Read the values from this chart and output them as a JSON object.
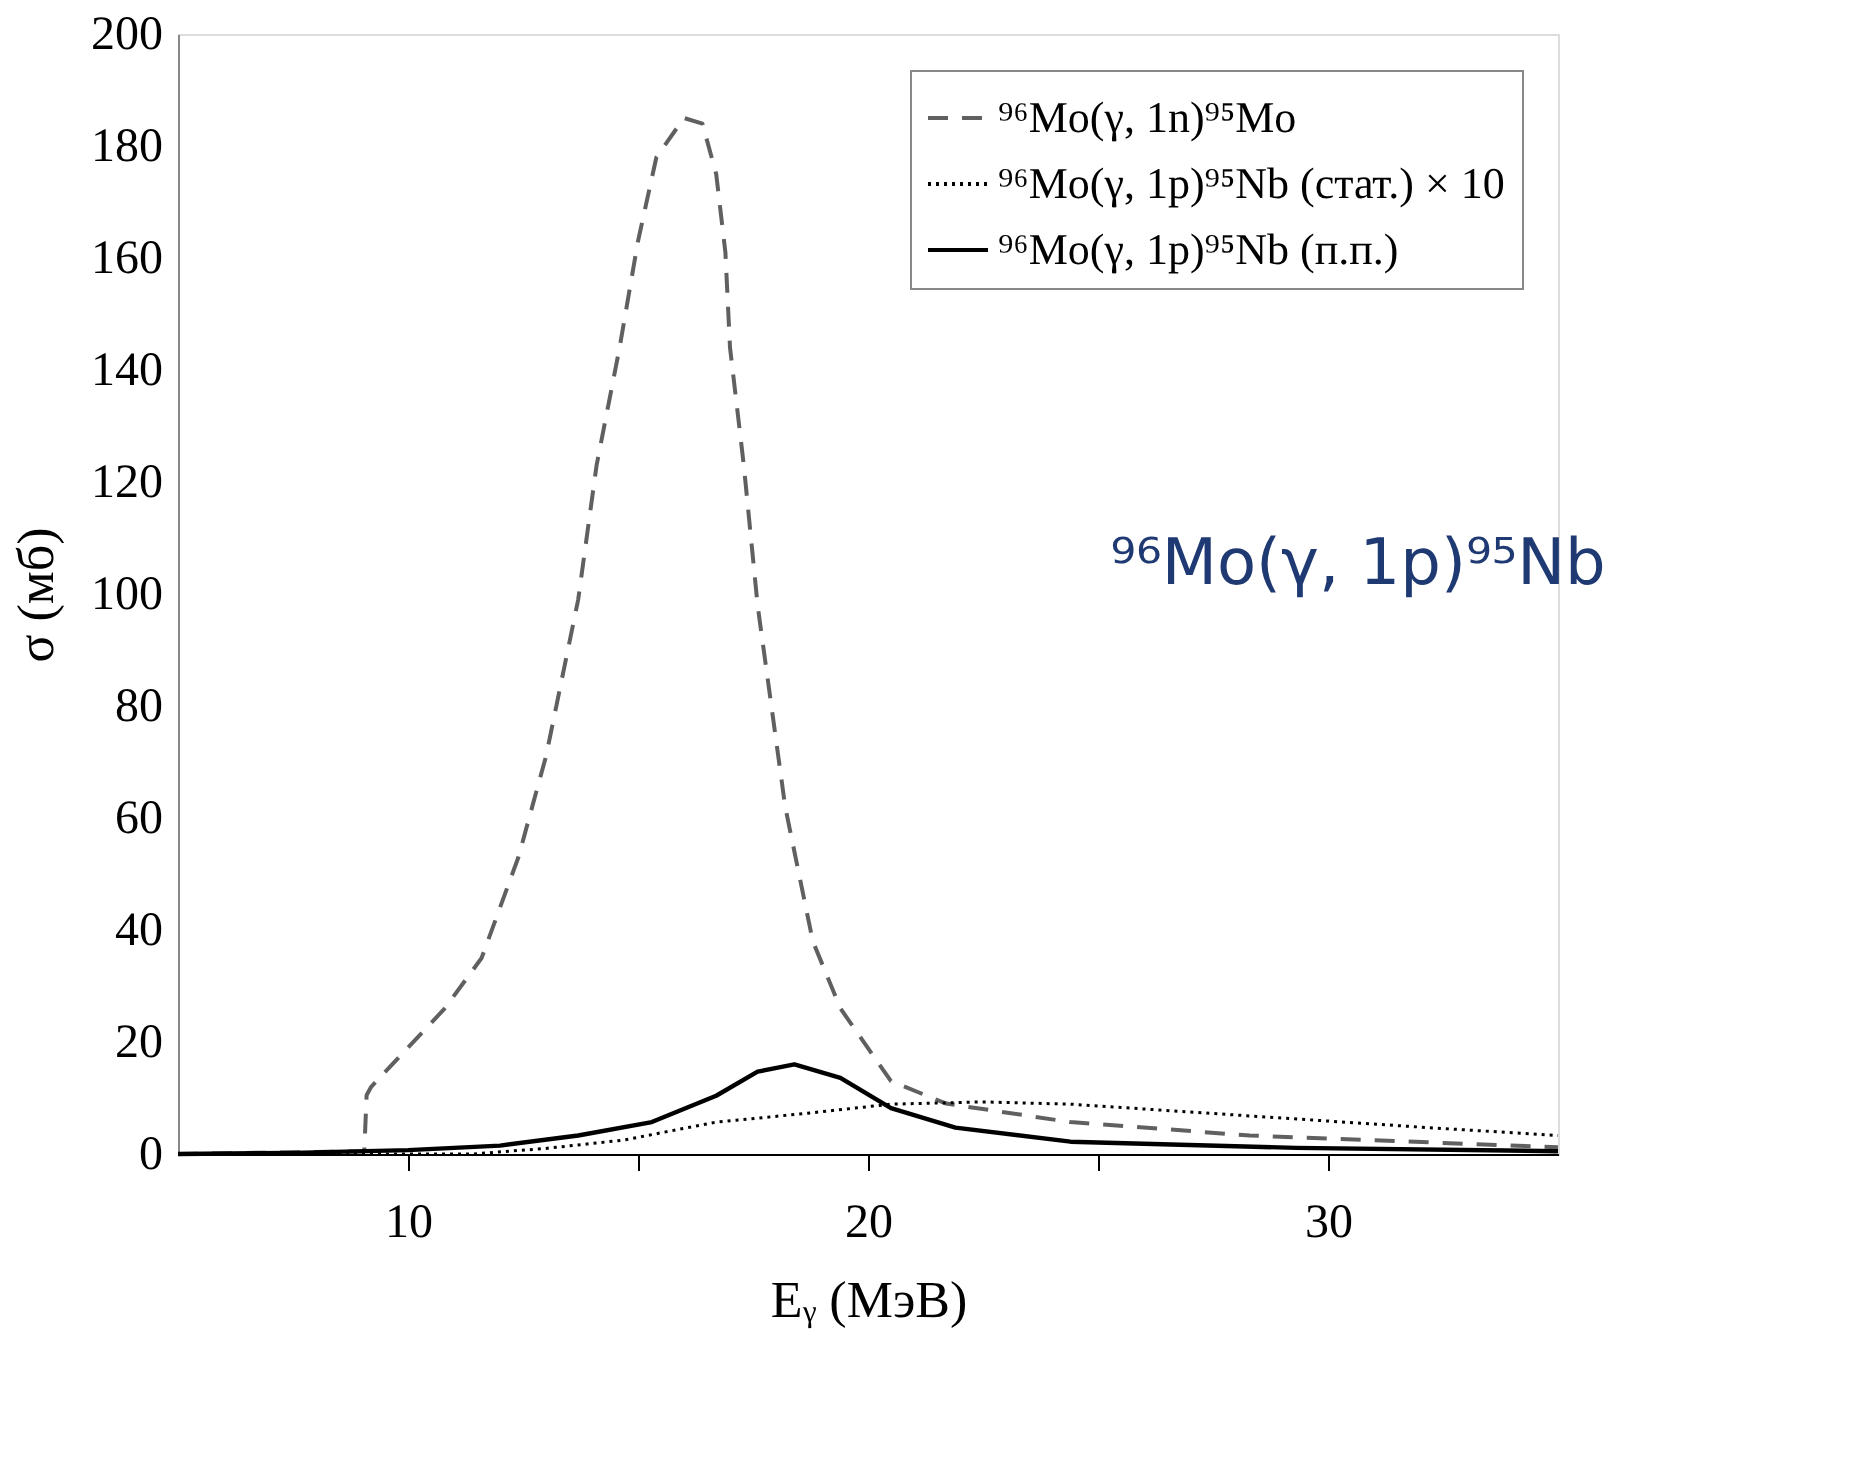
{
  "chart_data": {
    "type": "line",
    "xlabel": "Eᵧ (МэВ)",
    "ylabel": "σ (мб)",
    "xlim": [
      5,
      35
    ],
    "xticks": [
      10,
      {
        "value": 15,
        "label": null
      },
      20,
      {
        "value": 25,
        "label": null
      },
      30
    ],
    "ylim": [
      0,
      200
    ],
    "yticks": [
      0,
      20,
      40,
      60,
      80,
      100,
      120,
      140,
      160,
      180,
      200
    ],
    "grid": false,
    "legend": "top right",
    "marker": "none",
    "annotations": [
      "⁹⁶Mo(γ, 1p)⁹⁵Nb"
    ],
    "series": [
      {
        "name": "⁹⁶Mo(γ, 1n)⁹⁵Mo",
        "color": "#606060",
        "line_style": "dashed",
        "x": [
          5,
          9.05,
          9.1,
          9.2,
          10.0,
          10.8,
          11.6,
          12.4,
          13.0,
          13.7,
          14.1,
          14.6,
          15.0,
          15.4,
          16.0,
          16.4,
          16.7,
          16.9,
          17.0,
          17.3,
          17.6,
          18.2,
          18.8,
          19.4,
          20.5,
          21.7,
          24.4,
          28.3,
          35
        ],
        "values": [
          0,
          0.5,
          10.5,
          12,
          19,
          26,
          35,
          53,
          71,
          99,
          123,
          144,
          163,
          178,
          185,
          184,
          175,
          161,
          144,
          123,
          98,
          62,
          38,
          26,
          13,
          9,
          5.7,
          3.3,
          1.2
        ]
      },
      {
        "name": "⁹⁶Mo(γ, 1p)⁹⁵Nb (стат.) × 10",
        "color": "#000000",
        "line_style": "dotted",
        "x": [
          5,
          11.4,
          13,
          14.7,
          16.7,
          18.6,
          20.5,
          22.5,
          24.4,
          28.3,
          32.2,
          35
        ],
        "values": [
          0,
          0,
          1,
          2.5,
          5.7,
          7.2,
          8.9,
          9.3,
          8.9,
          6.8,
          4.7,
          3.3
        ]
      },
      {
        "name": "⁹⁶Mo(γ, 1p)⁹⁵Nb (п.п.)",
        "color": "#000000",
        "line_style": "solid",
        "x": [
          5,
          7.5,
          10,
          12,
          13.7,
          15.3,
          16.7,
          17.6,
          18.4,
          19.4,
          20.5,
          21.9,
          24.4,
          29.3,
          35
        ],
        "values": [
          0,
          0.2,
          0.7,
          1.5,
          3.3,
          5.7,
          10.4,
          14.7,
          16,
          13.6,
          8.2,
          4.7,
          2.2,
          1.1,
          0.5
        ]
      }
    ]
  }
}
